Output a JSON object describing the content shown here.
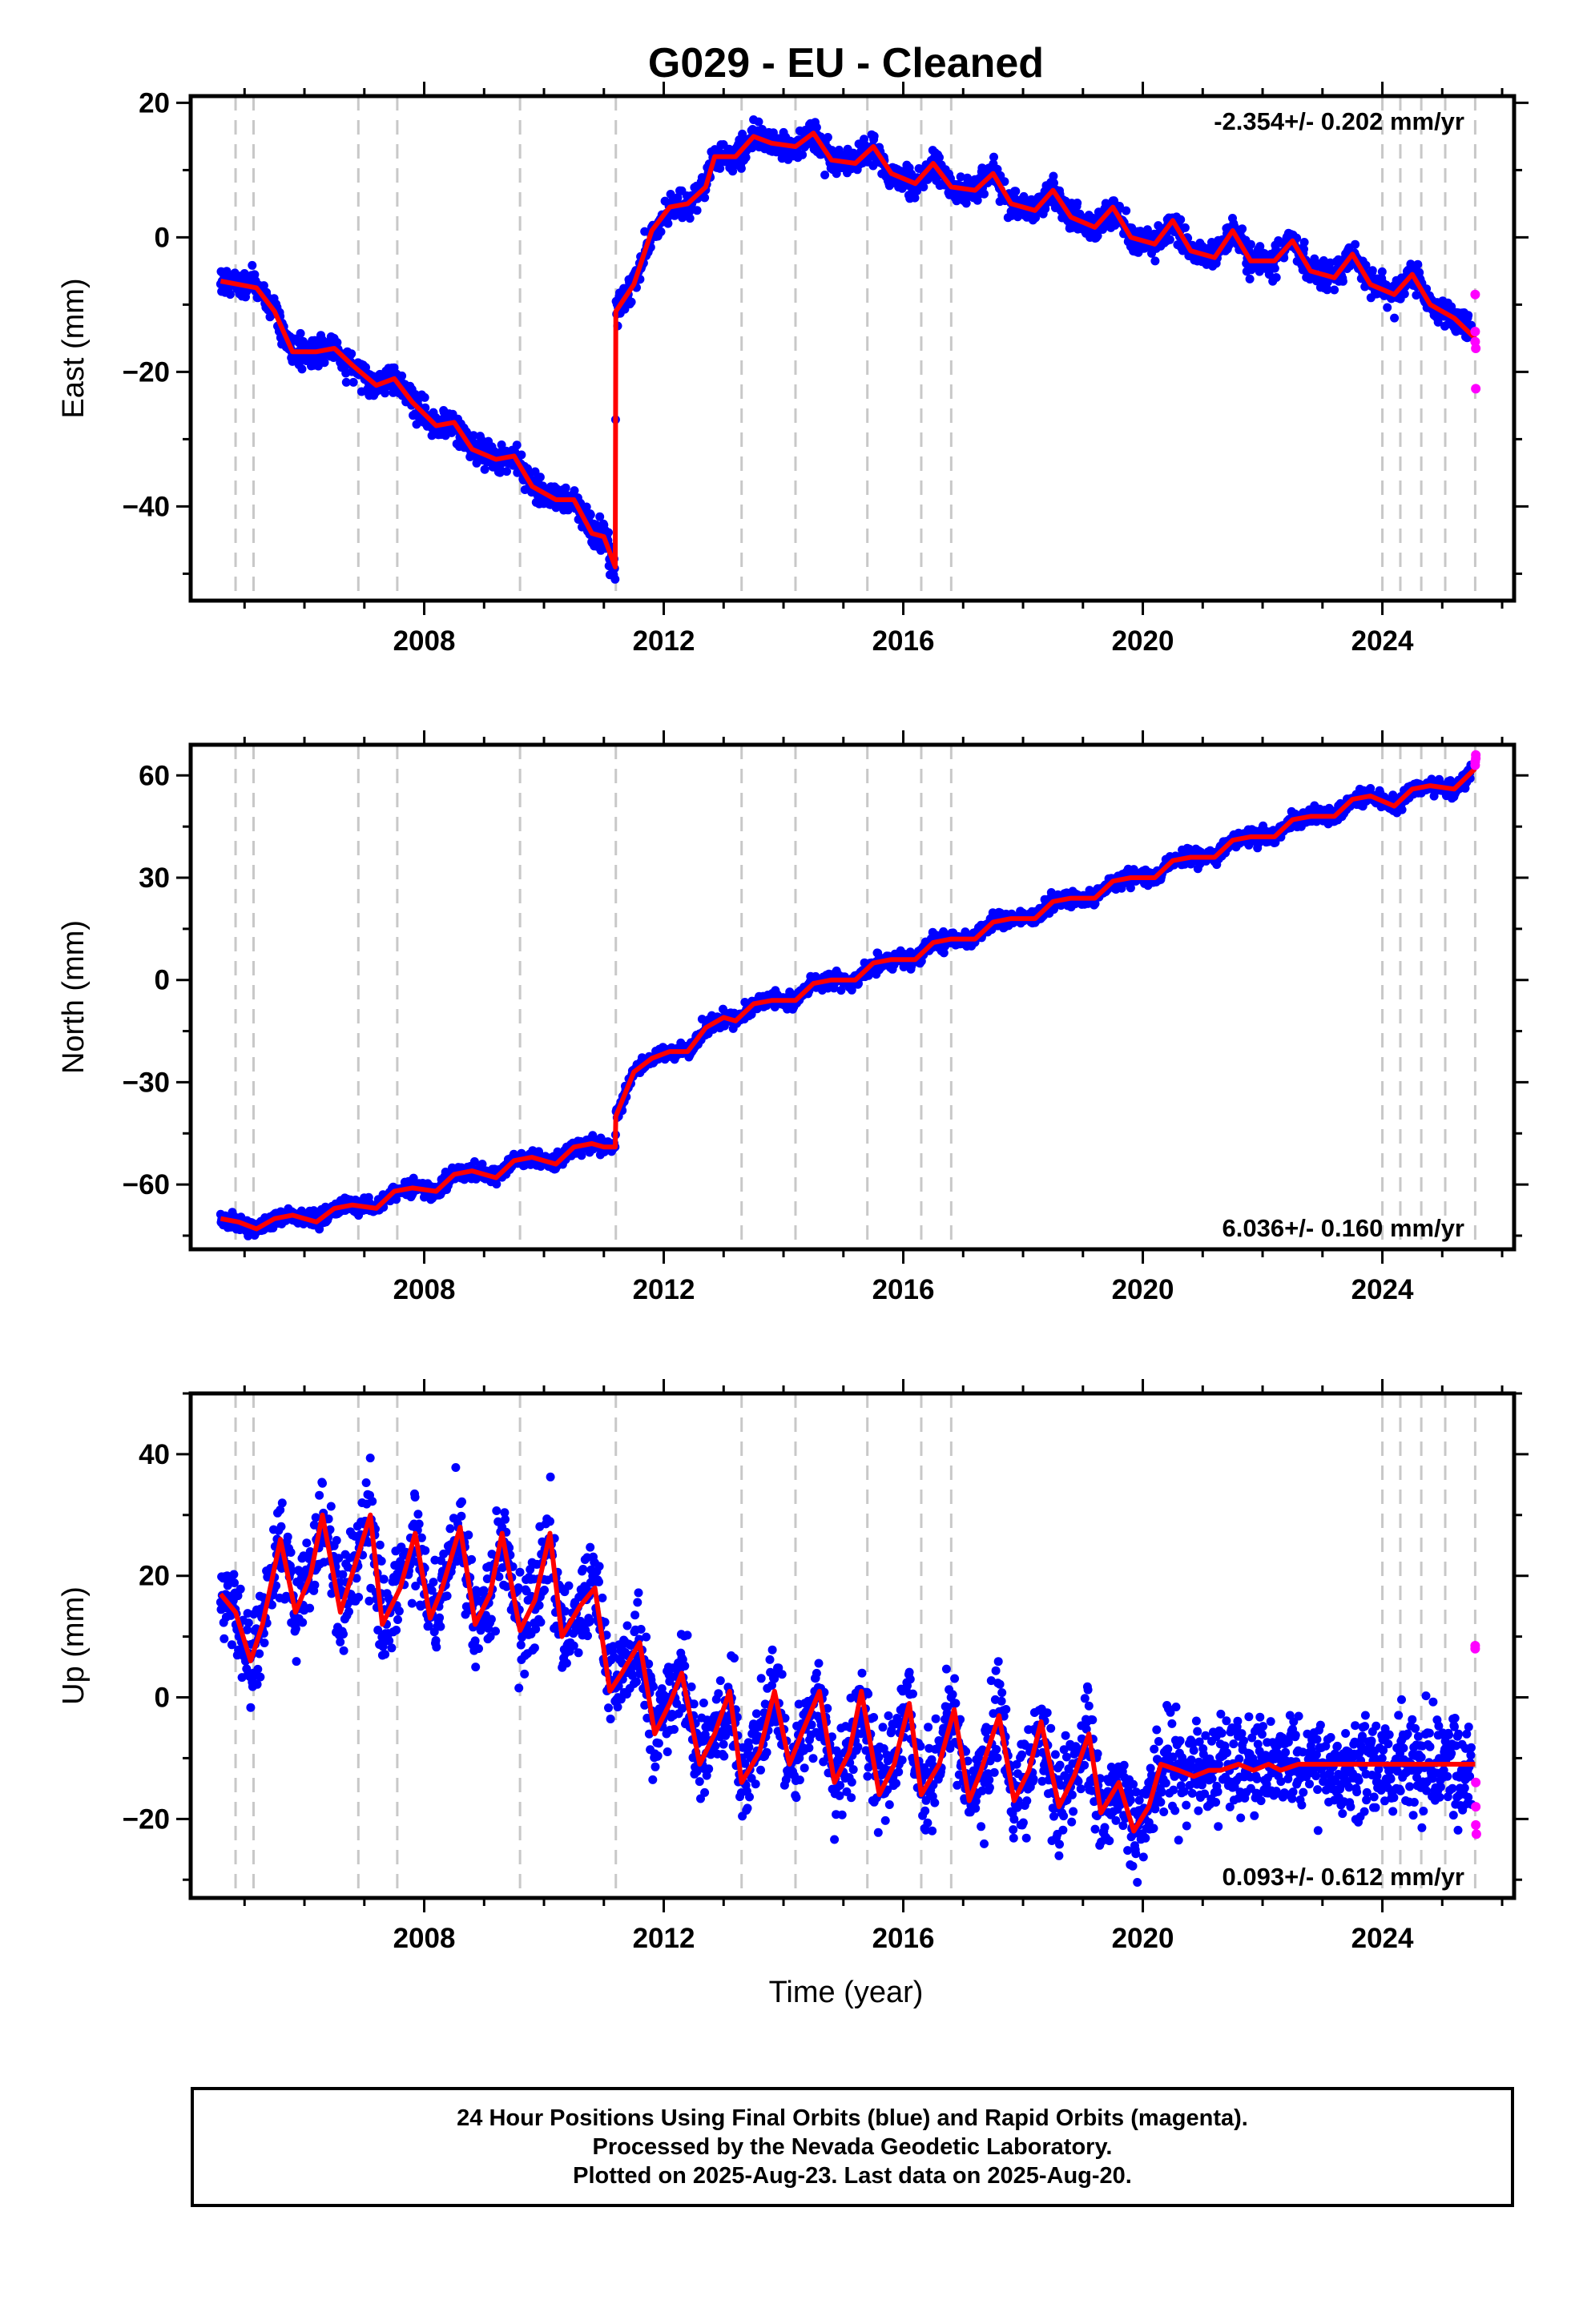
{
  "title": "G029  - EU - Cleaned",
  "colors": {
    "final_orbits": "#0000ff",
    "rapid_orbits": "#ff00ff",
    "model": "#ff0000",
    "event_lines": "#c8c8c8"
  },
  "xlabel": "Time (year)",
  "event_lines": [
    2004.85,
    2005.15,
    2006.9,
    2007.55,
    2009.6,
    2011.2,
    2013.3,
    2014.2,
    2015.4,
    2016.3,
    2016.8,
    2024.0,
    2024.3,
    2024.65,
    2025.05,
    2025.55
  ],
  "chart_data": [
    {
      "type": "scatter",
      "ylabel": "East (mm)",
      "rate_label": "-2.354+/- 0.202 mm/yr",
      "xlim": [
        2004.1,
        2026.2
      ],
      "ylim": [
        -54,
        21
      ],
      "xticks": [
        2008,
        2012,
        2016,
        2020,
        2024
      ],
      "yticks": [
        -40,
        -20,
        0,
        20
      ],
      "grid": false,
      "series": [
        {
          "role": "model",
          "x": [
            2004.6,
            2004.9,
            2005.2,
            2005.5,
            2005.8,
            2006.2,
            2006.5,
            2006.8,
            2007.2,
            2007.5,
            2007.8,
            2008.2,
            2008.5,
            2008.8,
            2009.2,
            2009.5,
            2009.8,
            2010.2,
            2010.5,
            2010.8,
            2011.0,
            2011.19,
            2011.2,
            2011.5,
            2011.8,
            2012.1,
            2012.4,
            2012.7,
            2012.85,
            2013.2,
            2013.5,
            2013.8,
            2014.2,
            2014.5,
            2014.8,
            2015.2,
            2015.5,
            2015.8,
            2016.2,
            2016.5,
            2016.8,
            2017.2,
            2017.5,
            2017.8,
            2018.2,
            2018.5,
            2018.8,
            2019.2,
            2019.5,
            2019.8,
            2020.2,
            2020.5,
            2020.8,
            2021.2,
            2021.5,
            2021.8,
            2022.2,
            2022.5,
            2022.8,
            2023.2,
            2023.5,
            2023.8,
            2024.2,
            2024.5,
            2024.8,
            2025.2,
            2025.55
          ],
          "y": [
            -6.5,
            -7,
            -7.5,
            -11,
            -17,
            -17,
            -16.5,
            -19,
            -22,
            -21,
            -24.5,
            -28,
            -27.5,
            -31.5,
            -33,
            -32.5,
            -37,
            -39,
            -39,
            -44,
            -44.5,
            -49,
            -11,
            -7,
            1,
            4.5,
            5,
            7.5,
            12,
            12,
            15,
            14,
            13.5,
            15.5,
            11.5,
            11,
            13.5,
            9.5,
            8,
            11,
            7.5,
            7,
            9.5,
            5,
            4,
            7,
            3,
            1.5,
            4.5,
            0,
            -1,
            2.5,
            -2,
            -3,
            1,
            -3.5,
            -3.5,
            -0.5,
            -5,
            -6,
            -2.5,
            -7,
            -8.5,
            -5.5,
            -10,
            -12,
            -15
          ]
        },
        {
          "role": "final_orbits",
          "x": [],
          "y": []
        },
        {
          "role": "rapid_orbits",
          "x": [
            2025.55,
            2025.55,
            2025.55,
            2025.56,
            2025.56
          ],
          "y": [
            -8.5,
            -14,
            -15.5,
            -16.5,
            -22.5
          ]
        }
      ]
    },
    {
      "type": "scatter",
      "ylabel": "North (mm)",
      "rate_label": "6.036+/- 0.160 mm/yr",
      "xlim": [
        2004.1,
        2026.2
      ],
      "ylim": [
        -79,
        69
      ],
      "xticks": [
        2008,
        2012,
        2016,
        2020,
        2024
      ],
      "yticks": [
        -60,
        -30,
        0,
        30,
        60
      ],
      "grid": false,
      "series": [
        {
          "role": "model",
          "x": [
            2004.6,
            2004.9,
            2005.2,
            2005.5,
            2005.8,
            2006.2,
            2006.5,
            2006.8,
            2007.2,
            2007.5,
            2007.8,
            2008.2,
            2008.5,
            2008.8,
            2009.2,
            2009.5,
            2009.8,
            2010.2,
            2010.5,
            2010.8,
            2011.0,
            2011.19,
            2011.2,
            2011.5,
            2011.8,
            2012.1,
            2012.4,
            2012.7,
            2013.0,
            2013.2,
            2013.5,
            2013.8,
            2014.2,
            2014.5,
            2014.8,
            2015.2,
            2015.5,
            2015.8,
            2016.2,
            2016.5,
            2016.8,
            2017.2,
            2017.5,
            2017.8,
            2018.2,
            2018.5,
            2018.8,
            2019.2,
            2019.5,
            2019.8,
            2020.2,
            2020.5,
            2020.8,
            2021.2,
            2021.5,
            2021.8,
            2022.2,
            2022.5,
            2022.8,
            2023.2,
            2023.5,
            2023.8,
            2024.2,
            2024.5,
            2024.8,
            2025.2,
            2025.55
          ],
          "y": [
            -70,
            -71,
            -73,
            -70,
            -69,
            -71,
            -67,
            -66,
            -67,
            -62,
            -61,
            -62,
            -57,
            -56,
            -58,
            -53,
            -52,
            -54,
            -49,
            -48,
            -49,
            -49,
            -40,
            -27,
            -23,
            -21,
            -21,
            -14,
            -11,
            -12,
            -7,
            -6,
            -6,
            -1,
            0,
            0,
            5,
            6,
            6,
            11,
            12,
            12,
            17,
            18,
            18,
            23,
            24,
            24,
            29,
            30,
            30,
            35,
            36,
            36,
            41,
            42,
            42,
            47,
            48,
            48,
            53,
            54,
            51,
            56,
            57,
            56,
            62
          ]
        },
        {
          "role": "final_orbits",
          "x": [],
          "y": []
        },
        {
          "role": "rapid_orbits",
          "x": [
            2025.55,
            2025.55,
            2025.56,
            2025.56
          ],
          "y": [
            63,
            64,
            65,
            66
          ]
        }
      ]
    },
    {
      "type": "scatter",
      "ylabel": "Up (mm)",
      "rate_label": "0.093+/- 0.612 mm/yr",
      "xlabel": "Time (year)",
      "xlim": [
        2004.1,
        2026.2
      ],
      "ylim": [
        -33,
        50
      ],
      "xticks": [
        2008,
        2012,
        2016,
        2020,
        2024
      ],
      "yticks": [
        -20,
        0,
        20,
        40
      ],
      "grid": false,
      "series": [
        {
          "role": "model",
          "x": [
            2004.6,
            2004.85,
            2005.1,
            2005.3,
            2005.6,
            2005.85,
            2006.1,
            2006.3,
            2006.6,
            2006.85,
            2007.1,
            2007.3,
            2007.6,
            2007.85,
            2008.1,
            2008.3,
            2008.6,
            2008.85,
            2009.1,
            2009.3,
            2009.6,
            2009.85,
            2010.1,
            2010.3,
            2010.6,
            2010.85,
            2011.1,
            2011.3,
            2011.6,
            2011.85,
            2012.1,
            2012.3,
            2012.6,
            2012.85,
            2013.1,
            2013.3,
            2013.6,
            2013.85,
            2014.1,
            2014.3,
            2014.6,
            2014.85,
            2015.1,
            2015.3,
            2015.6,
            2015.85,
            2016.1,
            2016.3,
            2016.6,
            2016.85,
            2017.1,
            2017.3,
            2017.6,
            2017.85,
            2018.1,
            2018.3,
            2018.6,
            2018.85,
            2019.1,
            2019.3,
            2019.6,
            2019.85,
            2020.1,
            2020.3,
            2020.6,
            2020.85,
            2021.1,
            2021.3,
            2021.6,
            2021.85,
            2022.1,
            2022.3,
            2022.6,
            2022.85,
            2023.1,
            2023.3,
            2023.6,
            2023.85,
            2024.1,
            2024.3,
            2024.6,
            2024.85,
            2025.05,
            2025.2,
            2025.55
          ],
          "y": [
            17,
            14,
            6,
            12,
            26,
            14,
            20,
            30,
            14,
            22,
            30,
            12,
            18,
            27,
            13,
            18,
            28,
            12,
            17,
            27,
            11,
            16,
            27,
            10,
            15,
            18,
            1,
            4,
            9,
            -6,
            -1,
            4,
            -11,
            -6,
            1,
            -14,
            -9,
            1,
            -11,
            -6,
            1,
            -14,
            -9,
            1,
            -16,
            -11,
            -1,
            -16,
            -11,
            -2,
            -17,
            -12,
            -3,
            -17,
            -12,
            -4,
            -18,
            -13,
            -6,
            -19,
            -14,
            -22,
            -18,
            -11,
            -12,
            -13,
            -12,
            -12,
            -11,
            -12,
            -11,
            -12,
            -11,
            -11,
            -11,
            -11,
            -11,
            -11,
            -11,
            -11,
            -11,
            -11,
            -11,
            -11,
            -11
          ]
        },
        {
          "role": "final_orbits",
          "x": [],
          "y": []
        },
        {
          "role": "rapid_orbits",
          "x": [
            2025.55,
            2025.55,
            2025.56,
            2025.56,
            2025.56,
            2025.57
          ],
          "y": [
            8,
            8.5,
            -14,
            -18,
            -21,
            -22.5
          ]
        }
      ]
    }
  ],
  "footer": {
    "line1": "24 Hour Positions Using Final Orbits (blue) and Rapid Orbits (magenta).",
    "line2": "Processed by the Nevada Geodetic Laboratory.",
    "line3": "Plotted on 2025-Aug-23. Last data on 2025-Aug-20."
  }
}
